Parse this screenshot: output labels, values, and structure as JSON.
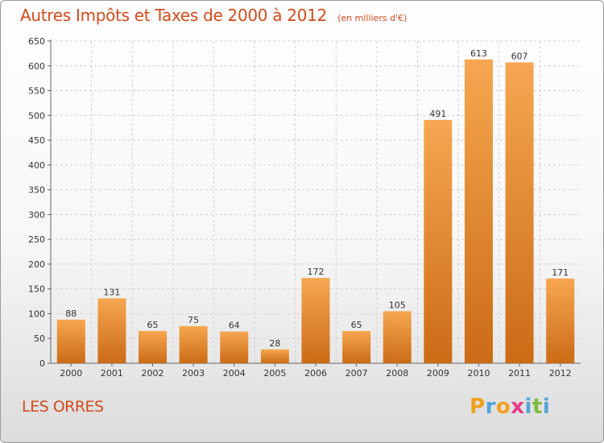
{
  "header": {
    "title": "Autres Impôts et Taxes de 2000 à 2012",
    "unit": "(en milliers d'€)"
  },
  "footer": {
    "commune": "LES ORRES",
    "logo": {
      "letters": [
        "P",
        "r",
        "o",
        "x",
        "i",
        "t",
        "i"
      ],
      "colors": [
        "#f2a01d",
        "#4ea6d8",
        "#f2a01d",
        "#e63c84",
        "#4ea6d8",
        "#7cbc3a",
        "#4ea6d8"
      ]
    }
  },
  "colors": {
    "bar_top": "#f6a751",
    "bar_bottom": "#cb6b16",
    "title": "#d24a1c",
    "grid": "#cfcfcf"
  },
  "chart_data": {
    "type": "bar",
    "categories": [
      "2000",
      "2001",
      "2002",
      "2003",
      "2004",
      "2005",
      "2006",
      "2007",
      "2008",
      "2009",
      "2010",
      "2011",
      "2012"
    ],
    "values": [
      88,
      131,
      65,
      75,
      64,
      28,
      172,
      65,
      105,
      491,
      613,
      607,
      171
    ],
    "title": "Autres Impôts et Taxes de 2000 à 2012",
    "subtitle": "(en milliers d'€)",
    "xlabel": "",
    "ylabel": "",
    "ylim": [
      0,
      650
    ],
    "yticks": [
      0,
      50,
      100,
      150,
      200,
      250,
      300,
      350,
      400,
      450,
      500,
      550,
      600,
      650
    ],
    "grid": true,
    "data_labels": true
  }
}
